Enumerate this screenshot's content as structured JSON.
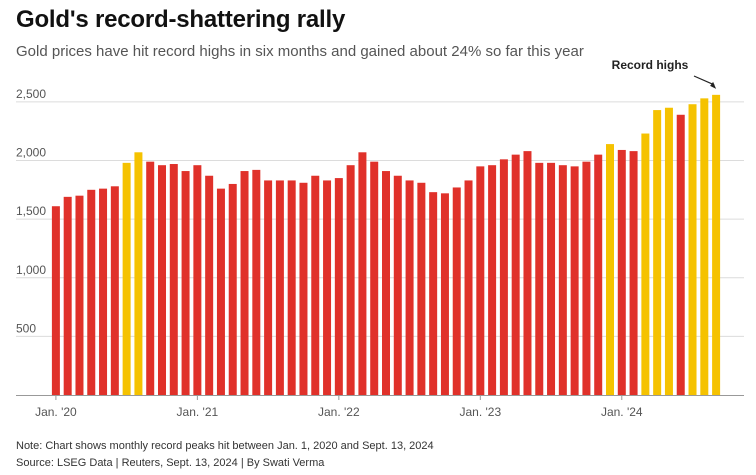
{
  "title": "Gold's record-shattering rally",
  "subtitle": "Gold prices have hit record highs in six months and gained about 24% so far this year",
  "note": "Note: Chart shows monthly record peaks hit between Jan. 1, 2020 and Sept. 13, 2024",
  "source": "Source: LSEG Data | Reuters, Sept. 13, 2024 | By Swati Verma",
  "colors": {
    "normal": "#e0312a",
    "record": "#f5c200",
    "grid": "#dcdcdc",
    "axis": "#999999",
    "text": "#555555"
  },
  "chart_data": {
    "type": "bar",
    "ylim": [
      0,
      2600
    ],
    "yticks": [
      500,
      1000,
      1500,
      2000,
      2500
    ],
    "ytick_labels": [
      "500",
      "1,000",
      "1,500",
      "2,000",
      "2,500"
    ],
    "xtick_labels": [
      {
        "index": 0,
        "label": "Jan. '20"
      },
      {
        "index": 12,
        "label": "Jan. '21"
      },
      {
        "index": 24,
        "label": "Jan. '22"
      },
      {
        "index": 36,
        "label": "Jan. '23"
      },
      {
        "index": 48,
        "label": "Jan. '24"
      }
    ],
    "annotation": {
      "text": "Record highs",
      "target_index": 56
    },
    "series": [
      {
        "values": [
          1610,
          1690,
          1700,
          1750,
          1760,
          1780,
          1980,
          2070,
          1990,
          1960,
          1970,
          1910,
          1960,
          1870,
          1760,
          1800,
          1910,
          1920,
          1830,
          1830,
          1830,
          1810,
          1870,
          1830,
          1850,
          1960,
          2070,
          1990,
          1910,
          1870,
          1830,
          1810,
          1730,
          1720,
          1770,
          1830,
          1950,
          1960,
          2010,
          2050,
          2080,
          1980,
          1980,
          1960,
          1950,
          1990,
          2050,
          2140,
          2090,
          2080,
          2230,
          2430,
          2450,
          2390,
          2480,
          2530,
          2560
        ],
        "is_record": [
          false,
          false,
          false,
          false,
          false,
          false,
          true,
          true,
          false,
          false,
          false,
          false,
          false,
          false,
          false,
          false,
          false,
          false,
          false,
          false,
          false,
          false,
          false,
          false,
          false,
          false,
          false,
          false,
          false,
          false,
          false,
          false,
          false,
          false,
          false,
          false,
          false,
          false,
          false,
          false,
          false,
          false,
          false,
          false,
          false,
          false,
          false,
          true,
          false,
          false,
          true,
          true,
          true,
          false,
          true,
          true,
          true
        ]
      }
    ]
  }
}
